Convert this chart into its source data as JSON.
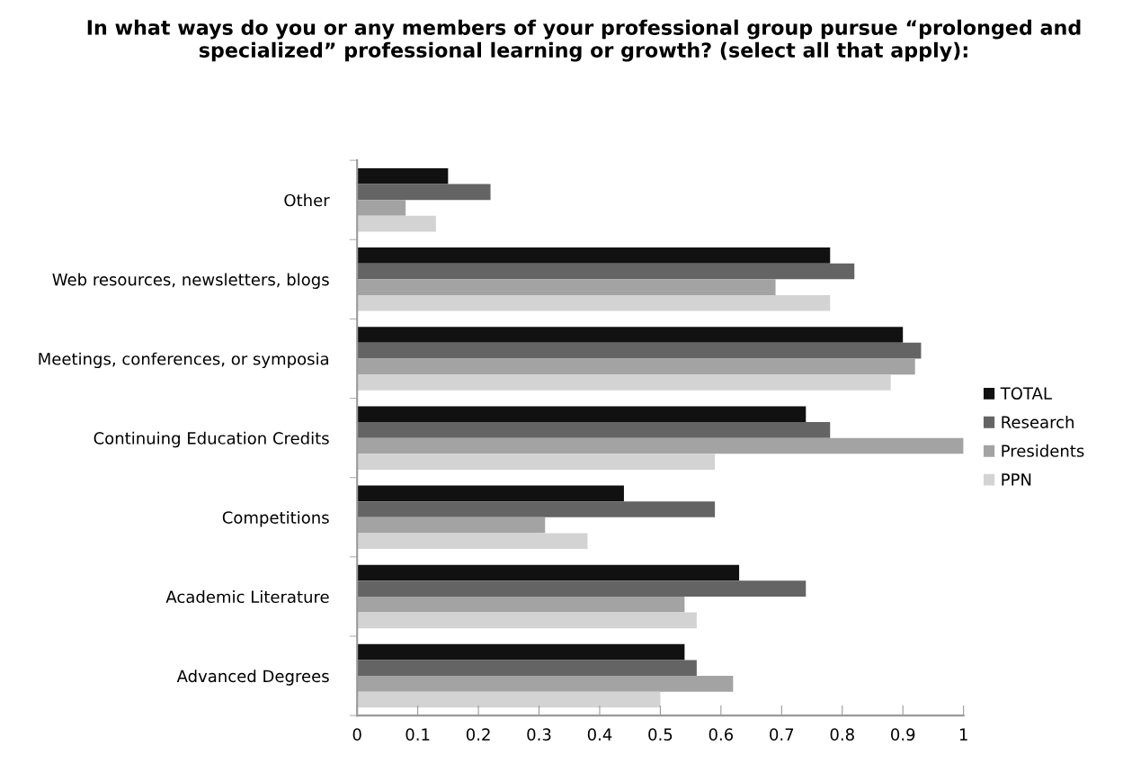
{
  "chart_data": {
    "type": "bar",
    "orientation": "horizontal",
    "title": "In what ways do you or any members of your professional group pursue “prolonged and specialized” professional learning or growth? (select all that apply):",
    "categories": [
      "Other",
      "Web resources, newsletters, blogs",
      "Meetings, conferences, or symposia",
      "Continuing Education Credits",
      "Competitions",
      "Academic Literature",
      "Advanced Degrees"
    ],
    "series": [
      {
        "name": "TOTAL",
        "color": "#111111",
        "values": [
          0.15,
          0.78,
          0.9,
          0.74,
          0.44,
          0.63,
          0.54
        ]
      },
      {
        "name": "Research",
        "color": "#646464",
        "values": [
          0.22,
          0.82,
          0.93,
          0.78,
          0.59,
          0.74,
          0.56
        ]
      },
      {
        "name": "Presidents",
        "color": "#a3a3a3",
        "values": [
          0.08,
          0.69,
          0.92,
          1.0,
          0.31,
          0.54,
          0.62
        ]
      },
      {
        "name": "PPN",
        "color": "#d3d3d3",
        "values": [
          0.13,
          0.78,
          0.88,
          0.59,
          0.38,
          0.56,
          0.5
        ]
      }
    ],
    "xlim": [
      0,
      1
    ],
    "xticks": [
      0,
      0.1,
      0.2,
      0.3,
      0.4,
      0.5,
      0.6,
      0.7,
      0.8,
      0.9,
      {
        "value": 1,
        "label": "1"
      }
    ],
    "grid": false,
    "legend": "right"
  }
}
